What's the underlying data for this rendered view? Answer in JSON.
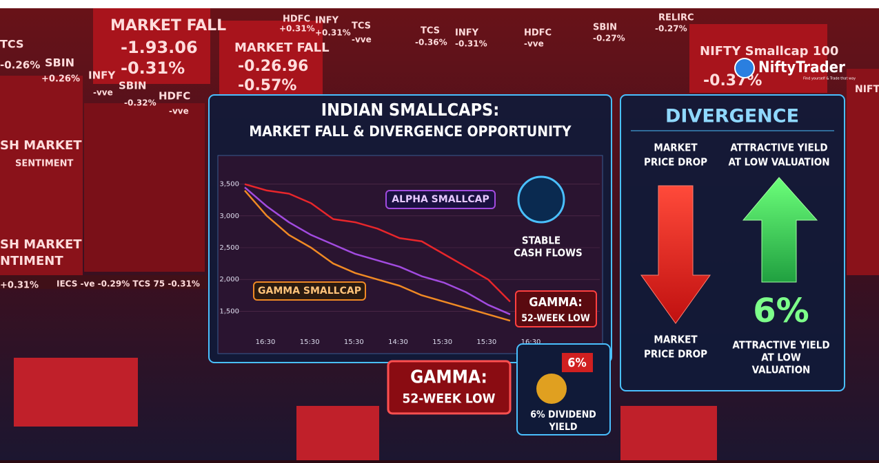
{
  "background": {
    "texts": [
      "MARKET FALL",
      "-1.93.06",
      "-0.31%",
      "MARKET FALL",
      "-0.26.96",
      "-0.57%",
      "NIFTY Smallcap 100",
      "-0.37%",
      "SH MARKET",
      "SENTIMENT",
      "SH MARKET",
      "NTIMENT",
      "TCS",
      "-0.26%",
      "SBIN",
      "+0.26%",
      "INFY",
      "-vve",
      "SBIN",
      "-0.32%",
      "HDFC",
      "-vve",
      "HDFC",
      "+0.31%",
      "INFY",
      "+0.31%",
      "TCS",
      "-vve",
      "TCS",
      "-0.36%",
      "INFY",
      "-0.31%",
      "HDFC",
      "-vve",
      "SBIN",
      "-0.27%",
      "RELIRC",
      "-0.27%",
      "+0.31%",
      "IECS -ve  -0.29%  TCS 75  -0.31%",
      "NIFTY"
    ]
  },
  "logo": {
    "name": "NiftyTrader",
    "tagline": "Find yourself & Trade that way"
  },
  "chart_data": {
    "type": "line",
    "title": "INDIAN SMALLCAPS:",
    "subtitle": "MARKET FALL  & DIVERGENCE OPPORTUNITY",
    "categories": [
      "16:30",
      null,
      "15:30",
      null,
      "15:30",
      null,
      "14:30",
      null,
      "15:30",
      null,
      "15:30",
      null,
      "16:30"
    ],
    "series": [
      {
        "color": "#e8262b",
        "values": [
          3500,
          3400,
          3350,
          3200,
          2950,
          2900,
          2800,
          2650,
          2600,
          2400,
          2200,
          2000,
          1650
        ]
      },
      {
        "name": "ALPHA SMALLCAP",
        "color": "#a24be0",
        "values": [
          3450,
          3150,
          2900,
          2700,
          2550,
          2400,
          2300,
          2200,
          2050,
          1950,
          1800,
          1600,
          1450
        ]
      },
      {
        "name": "GAMMA SMALLCAP",
        "color": "#f08a24",
        "values": [
          3400,
          3000,
          2700,
          2500,
          2250,
          2100,
          2000,
          1900,
          1750,
          1650,
          1550,
          1450,
          1350
        ]
      }
    ],
    "ylim": [
      1200,
      3800
    ],
    "yticks": [
      {
        "value": 1500,
        "label": "1,500"
      },
      {
        "value": 2000,
        "label": "2,000"
      },
      {
        "value": 2500,
        "label": "2,500"
      },
      {
        "value": 3000,
        "label": "3,000"
      },
      {
        "value": 3500,
        "label": "3,500"
      }
    ]
  },
  "callouts": {
    "stable": [
      "STABLE",
      "CASH FLOWS"
    ],
    "gamma_small": [
      "GAMMA:",
      "52-WEEK LOW"
    ],
    "gamma_big": [
      "GAMMA:",
      "52-WEEK LOW"
    ],
    "dividend_pct": "6%",
    "dividend": [
      "6% DIVIDEND",
      "YIELD"
    ]
  },
  "divergence": {
    "title": "DIVERGENCE",
    "left_top": [
      "MARKET",
      "PRICE DROP"
    ],
    "right_top": [
      "ATTRACTIVE YIELD",
      "AT LOW VALUATION"
    ],
    "big": "6%",
    "left_bottom": [
      "MARKET",
      "PRICE DROP"
    ],
    "right_bottom": [
      "ATTRACTIVE YIELD",
      "AT LOW",
      "VALUATION"
    ]
  }
}
